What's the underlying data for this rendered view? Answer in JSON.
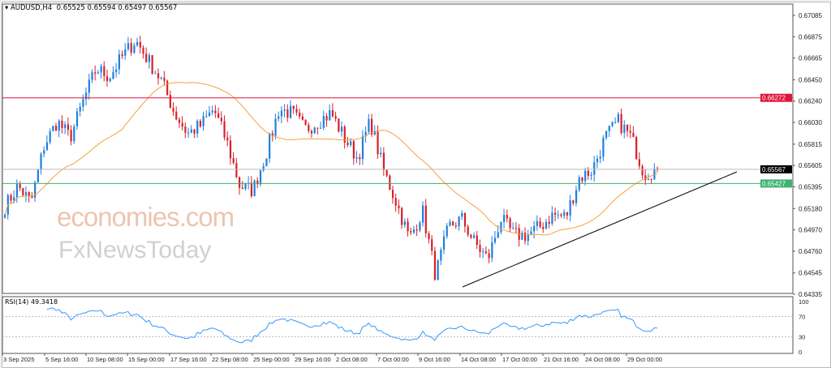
{
  "header": {
    "symbol": "AUDUSD,H4",
    "ohlc": "0.65525 0.65594 0.65497 0.65567"
  },
  "watermark": {
    "line1": "economies.com",
    "line2": "FxNewsToday"
  },
  "rsi": {
    "label": "RSI(14) 49.3418",
    "levels": [
      "100",
      "70",
      "30",
      "0"
    ],
    "color": "#3399ff"
  },
  "colors": {
    "bull": "#1e7fe0",
    "bear": "#d8202a",
    "ma": "#f5a23c",
    "resistance": "#e0143c",
    "support": "#3cb371",
    "current": "#000000"
  },
  "chart_data": {
    "type": "candlestick",
    "title": "AUDUSD,H4",
    "y_ticks": [
      "0.67085",
      "0.66875",
      "0.66665",
      "0.66450",
      "0.66240",
      "0.66030",
      "0.65815",
      "0.65605",
      "0.65395",
      "0.65180",
      "0.64970",
      "0.64760",
      "0.64545",
      "0.64335"
    ],
    "ylim": [
      0.64335,
      0.67085
    ],
    "x_ticks": [
      "3 Sep 2025",
      "5 Sep 16:00",
      "10 Sep 08:00",
      "15 Sep 00:00",
      "17 Sep 16:00",
      "22 Sep 08:00",
      "25 Sep 00:00",
      "29 Sep 16:00",
      "2 Oct 08:00",
      "7 Oct 00:00",
      "9 Oct 16:00",
      "14 Oct 08:00",
      "17 Oct 00:00",
      "21 Oct 16:00",
      "24 Oct 08:00",
      "29 Oct 00:00"
    ],
    "approx_closes": [
      0.652,
      0.654,
      0.6524,
      0.658,
      0.6604,
      0.6588,
      0.6624,
      0.6656,
      0.6648,
      0.6668,
      0.6684,
      0.6664,
      0.6644,
      0.6612,
      0.6592,
      0.66,
      0.6616,
      0.6584,
      0.654,
      0.6536,
      0.6572,
      0.6616,
      0.6612,
      0.6596,
      0.6604,
      0.6612,
      0.6588,
      0.6568,
      0.6604,
      0.6556,
      0.6524,
      0.6488,
      0.6516,
      0.6452,
      0.65,
      0.6508,
      0.6484,
      0.6468,
      0.6508,
      0.6492,
      0.6492,
      0.65,
      0.6512,
      0.651,
      0.6548,
      0.6556,
      0.6588,
      0.6604,
      0.6588,
      0.6552,
      0.6557
    ],
    "levels": [
      {
        "label": "0.66272",
        "value": 0.66272,
        "color": "#e0143c"
      },
      {
        "label": "0.65567",
        "value": 0.65567,
        "color": "#000000"
      },
      {
        "label": "0.65427",
        "value": 0.65427,
        "color": "#3cb371"
      }
    ],
    "trendline": {
      "from": 0.64407,
      "to": 0.65542
    },
    "moving_average": "orange line",
    "grid": false
  }
}
